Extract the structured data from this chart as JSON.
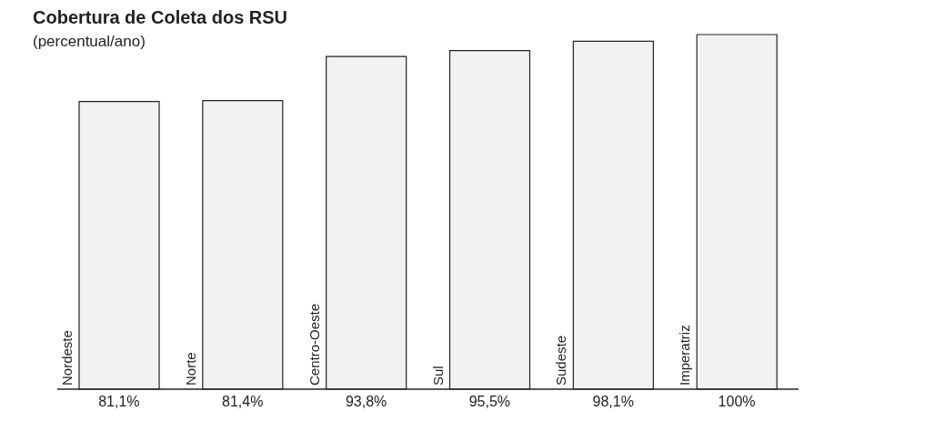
{
  "chart_data": {
    "type": "bar",
    "title": "Cobertura de Coleta dos RSU",
    "subtitle": "(percentual/ano)",
    "categories": [
      "Nordeste",
      "Norte",
      "Centro-Oeste",
      "Sul",
      "Sudeste",
      "Imperatriz"
    ],
    "values": [
      81.1,
      81.4,
      93.8,
      95.5,
      98.1,
      100
    ],
    "value_labels": [
      "81,1%",
      "81,4%",
      "93,8%",
      "95,5%",
      "98,1%",
      "100%"
    ],
    "color": "#f2f2f2"
  }
}
